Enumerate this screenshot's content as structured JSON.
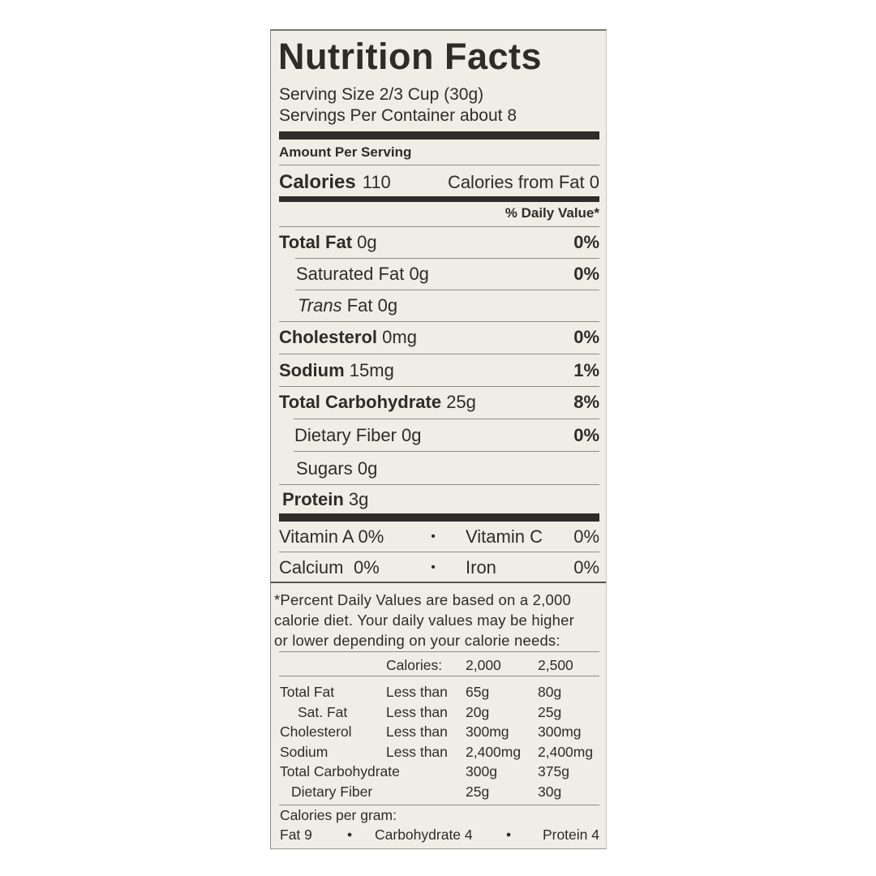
{
  "title": "Nutrition Facts",
  "serving_size": "Serving Size 2/3 Cup (30g)",
  "servings_per_container": "Servings Per Container about 8",
  "amount_per_serving": "Amount Per Serving",
  "calories": {
    "label": "Calories",
    "value": "110",
    "from_fat": "Calories from Fat 0"
  },
  "daily_value_header": "% Daily Value*",
  "nutrients": [
    {
      "label": "Total Fat",
      "amount": "0g",
      "dv": "0%"
    },
    {
      "label": "Saturated Fat",
      "amount": "0g",
      "dv": "0%"
    },
    {
      "label": "Trans",
      "label_rest": "Fat",
      "amount": "0g"
    },
    {
      "label": "Cholesterol",
      "amount": "0mg",
      "dv": "0%"
    },
    {
      "label": "Sodium",
      "amount": "15mg",
      "dv": "1%"
    },
    {
      "label": "Total Carbohydrate",
      "amount": "25g",
      "dv": "8%"
    },
    {
      "label": "Dietary Fiber",
      "amount": "0g",
      "dv": "0%"
    },
    {
      "label": "Sugars",
      "amount": "0g"
    },
    {
      "label": "Protein",
      "amount": "3g"
    }
  ],
  "vitamins": [
    {
      "label": "Vitamin A",
      "dv": "0%"
    },
    {
      "label": "Vitamin C",
      "dv": "0%"
    },
    {
      "label": "Calcium",
      "dv": "0%"
    },
    {
      "label": "Iron",
      "dv": "0%"
    }
  ],
  "bullet": "•",
  "footnote": [
    "*Percent Daily Values are based on a 2,000",
    "calorie diet. Your daily values may be higher",
    "or lower depending on your calorie needs:"
  ],
  "dv_table": {
    "header": [
      "Calories:",
      "2,000",
      "2,500"
    ],
    "rows": [
      [
        "Total Fat",
        "Less than",
        "65g",
        "80g"
      ],
      [
        "Sat. Fat",
        "Less than",
        "20g",
        "25g"
      ],
      [
        "Cholesterol",
        "Less than",
        "300mg",
        "300mg"
      ],
      [
        "Sodium",
        "Less than",
        "2,400mg",
        "2,400mg"
      ],
      [
        "Total Carbohydrate",
        "",
        "300g",
        "375g"
      ],
      [
        "Dietary Fiber",
        "",
        "25g",
        "30g"
      ]
    ]
  },
  "calories_per_gram": {
    "label": "Calories per gram:",
    "fat": "Fat 9",
    "carbohydrate": "Carbohydrate 4",
    "protein": "Protein 4"
  }
}
